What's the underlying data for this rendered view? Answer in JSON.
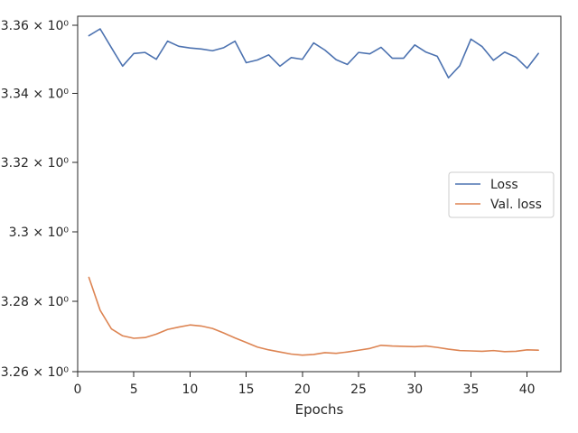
{
  "chart_data": {
    "type": "line",
    "title": "",
    "xlabel": "Epochs",
    "ylabel": "",
    "xlim": [
      -0.0,
      43.0
    ],
    "ylim": [
      3.26,
      3.3626
    ],
    "y_scale": "log",
    "grid": false,
    "legend_position": "center-right",
    "x_ticks": [
      0,
      5,
      10,
      15,
      20,
      25,
      30,
      35,
      40
    ],
    "x_tick_labels": [
      "0",
      "5",
      "10",
      "15",
      "20",
      "25",
      "30",
      "35",
      "40"
    ],
    "y_ticks": [
      3.26,
      3.28,
      3.3,
      3.32,
      3.34,
      3.36
    ],
    "y_tick_labels": [
      "3.26 × 10⁰",
      "3.28 × 10⁰",
      "3.3 × 10⁰",
      "3.32 × 10⁰",
      "3.34 × 10⁰",
      "3.36 × 10⁰"
    ],
    "x": [
      1,
      2,
      3,
      4,
      5,
      6,
      7,
      8,
      9,
      10,
      11,
      12,
      13,
      14,
      15,
      16,
      17,
      18,
      19,
      20,
      21,
      22,
      23,
      24,
      25,
      26,
      27,
      28,
      29,
      30,
      31,
      32,
      33,
      34,
      35,
      36,
      37,
      38,
      39,
      40,
      41
    ],
    "series": [
      {
        "name": "Loss",
        "color": "#4c72b0",
        "values": [
          3.3569,
          3.3589,
          3.3534,
          3.348,
          3.3517,
          3.352,
          3.35,
          3.3553,
          3.3538,
          3.3533,
          3.353,
          3.3525,
          3.3534,
          3.3553,
          3.349,
          3.3498,
          3.3513,
          3.348,
          3.3505,
          3.35,
          3.3548,
          3.3527,
          3.3499,
          3.3485,
          3.352,
          3.3516,
          3.3535,
          3.3503,
          3.3503,
          3.3542,
          3.3521,
          3.3509,
          3.3446,
          3.3481,
          3.3559,
          3.3537,
          3.3497,
          3.3521,
          3.3506,
          3.3474,
          3.3517
        ]
      },
      {
        "name": "Val. loss",
        "color": "#dd8452",
        "values": [
          3.2869,
          3.2775,
          3.2722,
          3.2702,
          3.2695,
          3.2697,
          3.2707,
          3.272,
          3.2727,
          3.2733,
          3.273,
          3.2723,
          3.271,
          3.2696,
          3.2683,
          3.267,
          3.2662,
          3.2656,
          3.265,
          3.2647,
          3.2649,
          3.2654,
          3.2652,
          3.2656,
          3.2661,
          3.2666,
          3.2675,
          3.2673,
          3.2672,
          3.2671,
          3.2673,
          3.2669,
          3.2664,
          3.266,
          3.2659,
          3.2658,
          3.266,
          3.2657,
          3.2658,
          3.2662,
          3.2661
        ]
      }
    ]
  }
}
